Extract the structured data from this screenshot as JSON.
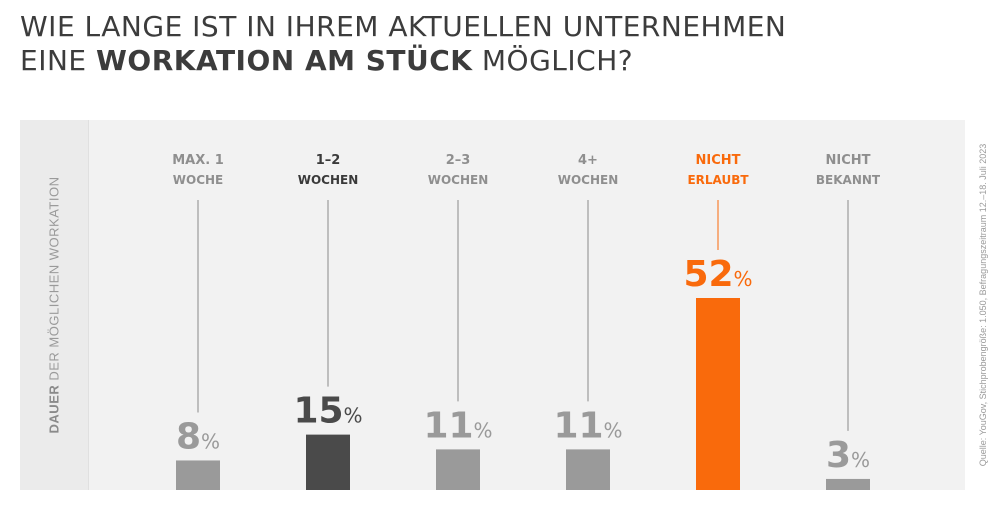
{
  "title": {
    "line1": "WIE LANGE IST IN IHREM AKTUELLEN UNTERNEHMEN",
    "line2_pre": "EINE ",
    "line2_bold": "WORKATION AM STÜCK",
    "line2_post": " MÖGLICH?"
  },
  "ylabel": {
    "bold": "DAUER",
    "rest": " DER MÖGLICHEN WORKATION"
  },
  "source": "Quelle: YouGov, Stichprobengröße: 1.050, Befragungszeitraum 12.–18. Juli 2023",
  "colors": {
    "default": "#9a9a9a",
    "dark": "#4a4a4a",
    "highlight": "#f96a0c",
    "panel": "#f2f2f2"
  },
  "chart_data": {
    "type": "bar",
    "categories": [
      {
        "line1": "MAX. 1",
        "line2": "WOCHE"
      },
      {
        "line1": "1–2",
        "line2": "WOCHEN"
      },
      {
        "line1": "2–3",
        "line2": "WOCHEN"
      },
      {
        "line1": "4+",
        "line2": "WOCHEN"
      },
      {
        "line1": "NICHT",
        "line2": "ERLAUBT"
      },
      {
        "line1": "NICHT",
        "line2": "BEKANNT"
      }
    ],
    "values": [
      8,
      15,
      11,
      11,
      52,
      3
    ],
    "unit": "%",
    "styles": [
      "default",
      "dark",
      "default",
      "default",
      "highlight",
      "default"
    ],
    "ylim": [
      0,
      52
    ],
    "grid": false,
    "legend": "none"
  }
}
